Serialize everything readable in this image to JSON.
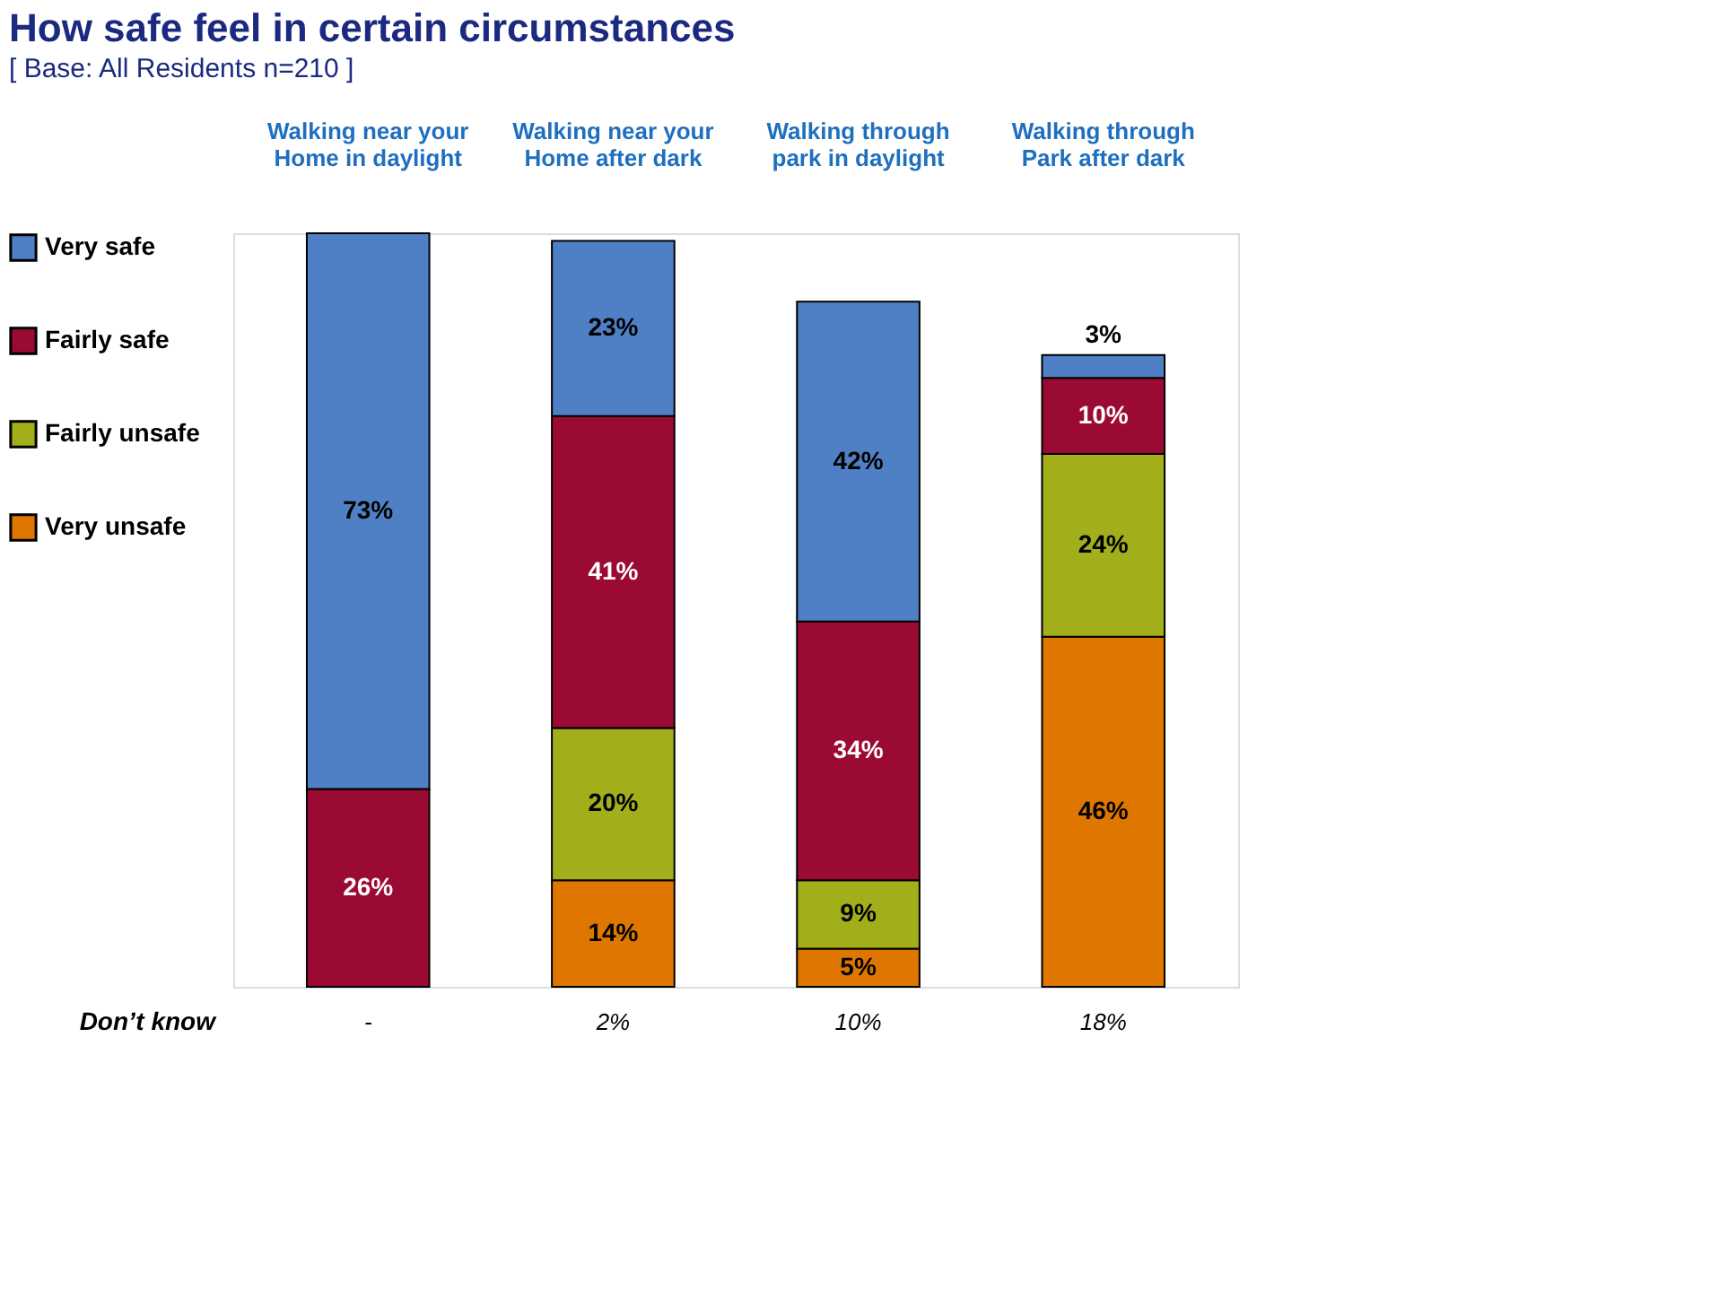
{
  "chart_data": {
    "type": "bar",
    "stacked": true,
    "title": "How safe feel in certain circumstances",
    "subtitle": "[ Base:  All Residents n=210 ]",
    "categories": [
      "Walking near your\nHome in daylight",
      "Walking near your\nHome after dark",
      "Walking through\npark in daylight",
      "Walking through\nPark after dark"
    ],
    "series": [
      {
        "name": "Very unsafe",
        "color": "#de7600",
        "values": [
          null,
          14,
          5,
          46
        ],
        "value_labels": [
          null,
          "14%",
          "5%",
          "46%"
        ]
      },
      {
        "name": "Fairly unsafe",
        "color": "#a2ae1a",
        "values": [
          null,
          20,
          9,
          24
        ],
        "value_labels": [
          null,
          "20%",
          "9%",
          "24%"
        ]
      },
      {
        "name": "Fairly safe",
        "color": "#9b0a32",
        "values": [
          26,
          41,
          34,
          10
        ],
        "value_labels": [
          "26%",
          "41%",
          "34%",
          "10%"
        ]
      },
      {
        "name": "Very safe",
        "color": "#4f7fc4",
        "values": [
          73,
          23,
          42,
          3
        ],
        "value_labels": [
          "73%",
          "23%",
          "42%",
          "3%"
        ]
      }
    ],
    "annotations": [
      "Don’t know",
      "-",
      "2%",
      "10%",
      "18%"
    ],
    "legend": "left",
    "grid": false
  }
}
